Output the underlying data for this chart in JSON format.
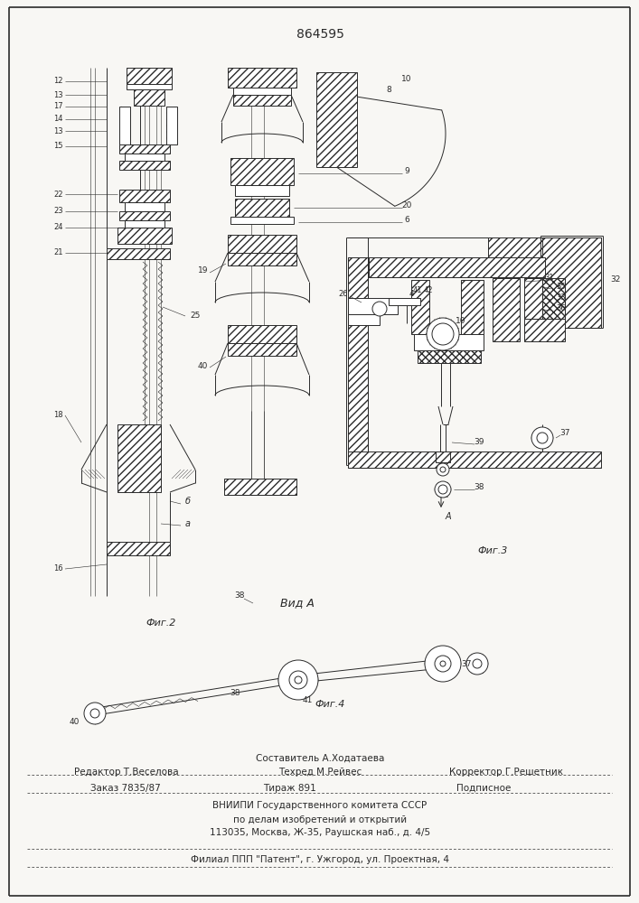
{
  "patent_number": "864595",
  "bg": "#f8f7f4",
  "lc": "#2a2a2a",
  "footer_texts": {
    "editor": "Редактор Т.Веселова",
    "composer": "Составитель А.Ходатаева",
    "techred": "Техред М.Рейвес",
    "corrector": "Корректор Г.Решетник",
    "order": "Заказ 7835/87",
    "tirazh": "Тираж 891",
    "podpisnoe": "Подписное",
    "vnipi": "ВНИИПИ Государственного комитета СССР",
    "po_delam": "по делам изобретений и открытий",
    "address": "113035, Москва, Ж-35, Раушская наб., д. 4/5",
    "filial": "Филиал ППП \"Патент\", г. Ужгород, ул. Проектная, 4"
  },
  "fig2_label": "Фиг.2",
  "fig3_label": "Фиг.3",
  "fig4_label": "Фиг.4",
  "vidA_label": "Вид A"
}
